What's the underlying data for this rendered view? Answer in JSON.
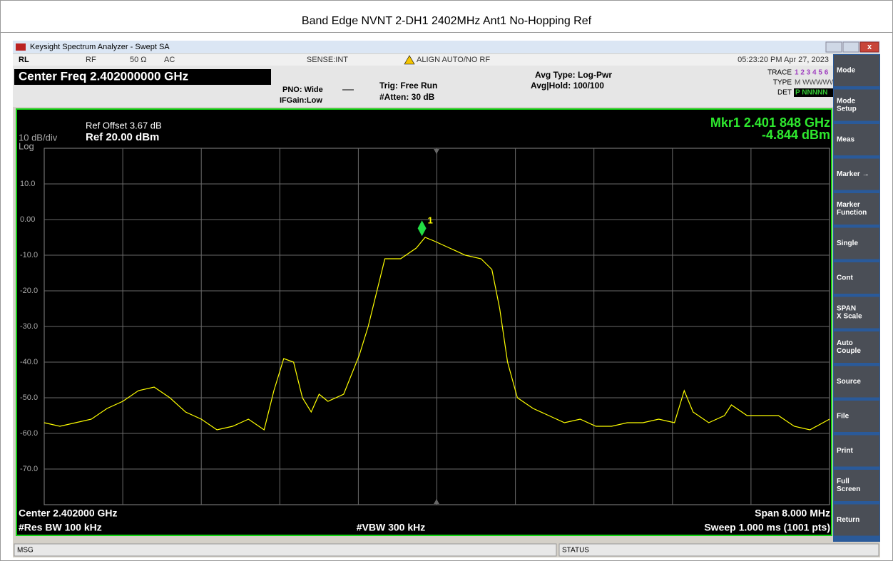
{
  "page_title": "Band Edge NVNT 2-DH1 2402MHz Ant1 No-Hopping Ref",
  "window_title": "Keysight Spectrum Analyzer - Swept SA",
  "status_top": {
    "rl": "RL",
    "rf": "RF",
    "impedance": "50 Ω",
    "coupling": "AC",
    "sense": "SENSE:INT",
    "align": "ALIGN AUTO/NO RF",
    "time": "05:23:20 PM Apr 27, 2023"
  },
  "center_freq": "Center Freq 2.402000000 GHz",
  "pno": "PNO: Wide",
  "ifgain": "IFGain:Low",
  "trig": "Trig: Free Run",
  "atten": "#Atten: 30 dB",
  "avg_type": "Avg Type: Log-Pwr",
  "avg_hold": "Avg|Hold: 100/100",
  "trace_info": {
    "trace": "TRACE",
    "trace_nums": "1 2 3 4 5 6",
    "type": "TYPE",
    "type_val": "M WWWWW",
    "det": "DET",
    "det_val": "P NNNNN"
  },
  "chart_data": {
    "type": "line",
    "ref_offset": "Ref Offset 3.67 dB",
    "ref_level": "Ref 20.00 dBm",
    "scale": "10 dB/div",
    "scale_type": "Log",
    "marker_freq": "Mkr1 2.401 848 GHz",
    "marker_level": "-4.844 dBm",
    "marker": {
      "label": "1",
      "x": 2401.848,
      "y": -4.844
    },
    "color": "#ffff00",
    "grid": true,
    "xlim": [
      2398,
      2406
    ],
    "ylim": [
      -80,
      20
    ],
    "yticks": [
      {
        "value": 10,
        "label": "10.0"
      },
      {
        "value": 0,
        "label": "0.00"
      },
      {
        "value": -10,
        "label": "-10.0"
      },
      {
        "value": -20,
        "label": "-20.0"
      },
      {
        "value": -30,
        "label": "-30.0"
      },
      {
        "value": -40,
        "label": "-40.0"
      },
      {
        "value": -50,
        "label": "-50.0"
      },
      {
        "value": -60,
        "label": "-60.0"
      },
      {
        "value": -70,
        "label": "-70.0"
      }
    ],
    "x": [
      2398.0,
      2398.16,
      2398.32,
      2398.48,
      2398.64,
      2398.8,
      2398.96,
      2399.12,
      2399.28,
      2399.44,
      2399.6,
      2399.76,
      2399.92,
      2400.08,
      2400.24,
      2400.34,
      2400.44,
      2400.54,
      2400.63,
      2400.72,
      2400.8,
      2400.89,
      2401.05,
      2401.21,
      2401.3,
      2401.39,
      2401.47,
      2401.63,
      2401.79,
      2401.88,
      2401.97,
      2402.13,
      2402.29,
      2402.45,
      2402.56,
      2402.64,
      2402.72,
      2402.82,
      2402.98,
      2403.14,
      2403.3,
      2403.46,
      2403.62,
      2403.78,
      2403.94,
      2404.1,
      2404.26,
      2404.42,
      2404.52,
      2404.61,
      2404.77,
      2404.93,
      2405.0,
      2405.16,
      2405.32,
      2405.48,
      2405.64,
      2405.8,
      2406.0
    ],
    "values": [
      -57,
      -58,
      -57,
      -56,
      -53,
      -51,
      -48,
      -47,
      -50,
      -54,
      -56,
      -59,
      -58,
      -56,
      -59,
      -48,
      -39,
      -40,
      -50,
      -54,
      -49,
      -51,
      -49,
      -38,
      -30,
      -20,
      -11,
      -11,
      -8,
      -5,
      -6,
      -8,
      -10,
      -11,
      -14,
      -25,
      -40,
      -50,
      -53,
      -55,
      -57,
      -56,
      -58,
      -58,
      -57,
      -57,
      -56,
      -57,
      -48,
      -54,
      -57,
      -55,
      -52,
      -55,
      -55,
      -55,
      -58,
      -59,
      -56
    ],
    "footer": {
      "center": "Center 2.402000 GHz",
      "rbw": "#Res BW 100 kHz",
      "vbw": "#VBW 300 kHz",
      "span": "Span 8.000 MHz",
      "sweep": "Sweep  1.000 ms (1001 pts)"
    }
  },
  "softkeys": [
    "Mode",
    "Mode Setup",
    "Meas",
    "Marker →",
    "Marker Function",
    "Single",
    "Cont",
    "SPAN X Scale",
    "Auto Couple",
    "Source",
    "File",
    "Print",
    "Full Screen",
    "Return"
  ],
  "status_bar": {
    "msg": "MSG",
    "status": "STATUS"
  }
}
